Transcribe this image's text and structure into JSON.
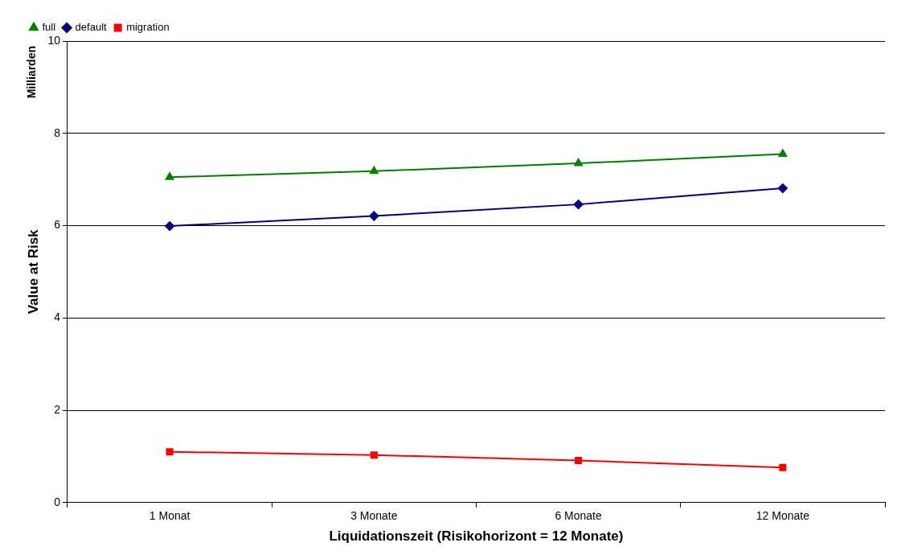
{
  "chart_data": {
    "type": "line",
    "xlabel": "Liquidationszeit (Risikohorizont = 12 Monate)",
    "ylabel": "Value at Risk",
    "annotations": [
      "Milliarden"
    ],
    "categories": [
      "1 Monat",
      "3 Monate",
      "6 Monate",
      "12 Monate"
    ],
    "series": [
      {
        "name": "full",
        "color": "#008000",
        "marker": "triangle",
        "values": [
          7.05,
          7.18,
          7.35,
          7.55
        ]
      },
      {
        "name": "default",
        "color": "#000080",
        "marker": "diamond",
        "values": [
          5.99,
          6.21,
          6.46,
          6.81
        ]
      },
      {
        "name": "migration",
        "color": "#ff0000",
        "marker": "square",
        "values": [
          1.1,
          1.03,
          0.91,
          0.76
        ]
      }
    ],
    "ylim": [
      0,
      10
    ],
    "yticks": [
      0,
      2,
      4,
      6,
      8,
      10
    ],
    "grid": "y",
    "legend": "top left"
  }
}
